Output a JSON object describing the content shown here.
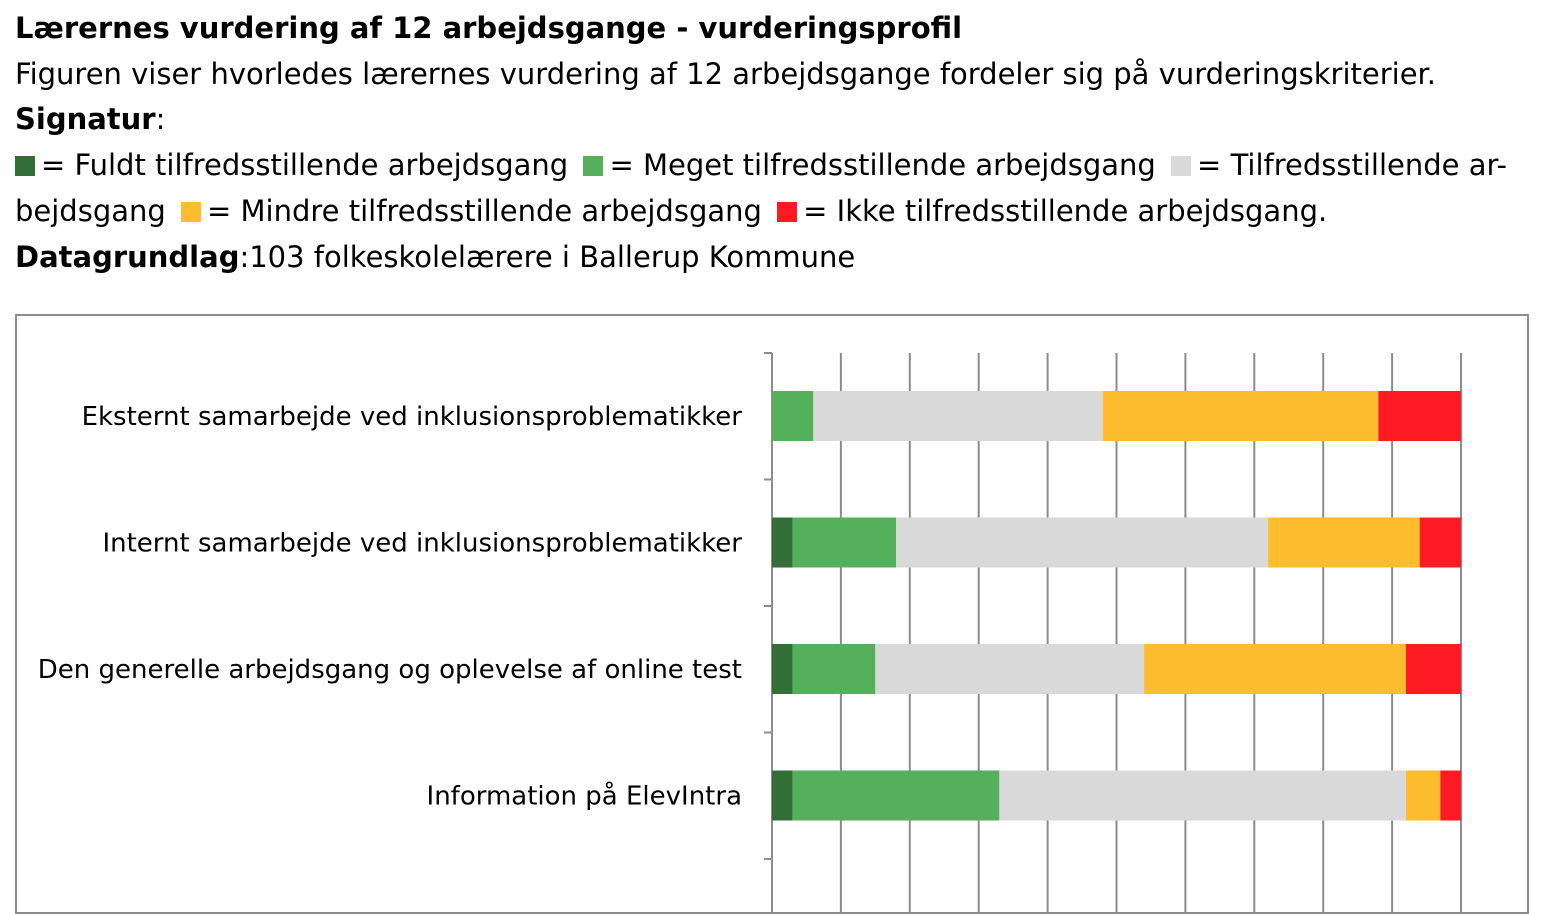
{
  "header": {
    "title": "Lærernes vurdering af 12 arbejdsgange - vurderingsprofil",
    "description": "Figuren viser hvorledes lærernes vurdering af 12 arbejdsgange fordeler sig på vurderingskriterier.",
    "signatur_label": "Signatur",
    "signatur_colon": ":",
    "legend_line1": {
      "item1": "= Fuldt tilfredsstillende arbejdsgang",
      "item2": "= Meget tilfredsstillende arbejdsgang",
      "item3": "= Tilfredsstillende ar-"
    },
    "legend_line2": {
      "item3_cont": "bejdsgang",
      "item4": "= Mindre tilfredsstillende arbejdsgang",
      "item5": "= Ikke tilfredsstillende arbejdsgang."
    },
    "datagrundlag_label": "Datagrundlag",
    "datagrundlag_value": ":103 folkeskolelærere i Ballerup Kommune"
  },
  "colors": {
    "fuldt": "#336e37",
    "meget": "#55b05b",
    "tilfreds": "#d9d9d9",
    "mindre": "#fdbd2f",
    "ikke": "#fd1a23",
    "gridline": "#8c8c8c"
  },
  "chart_data": {
    "type": "bar",
    "orientation": "horizontal",
    "stacked": "100%",
    "categories": [
      "Eksternt samarbejde ved inklusionsproblematikker",
      "Internt samarbejde ved inklusionsproblematikker",
      "Den generelle arbejdsgang og oplevelse af online test",
      "Information på ElevIntra"
    ],
    "series": [
      {
        "name": "Fuldt tilfredsstillende arbejdsgang",
        "color": "#336e37",
        "values": [
          0,
          3,
          3,
          3
        ]
      },
      {
        "name": "Meget tilfredsstillende arbejdsgang",
        "color": "#55b05b",
        "values": [
          6,
          15,
          12,
          30
        ]
      },
      {
        "name": "Tilfredsstillende arbejdsgang",
        "color": "#d9d9d9",
        "values": [
          42,
          54,
          39,
          59
        ]
      },
      {
        "name": "Mindre tilfredsstillende arbejdsgang",
        "color": "#fdbd2f",
        "values": [
          40,
          22,
          38,
          5
        ]
      },
      {
        "name": "Ikke tilfredsstillende arbejdsgang",
        "color": "#fd1a23",
        "values": [
          12,
          6,
          8,
          3
        ]
      }
    ],
    "xlim": [
      0,
      100
    ],
    "grid": true,
    "gridlines_x": [
      0,
      10,
      20,
      30,
      40,
      50,
      60,
      70,
      80,
      90,
      100
    ],
    "legend": "above chart (in text)"
  }
}
